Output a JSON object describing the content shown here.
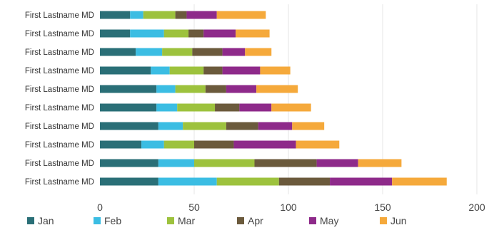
{
  "chart_data": {
    "type": "bar",
    "orientation": "horizontal",
    "stacked": true,
    "categories": [
      "First Lastname MD",
      "First Lastname MD",
      "First Lastname MD",
      "First Lastname MD",
      "First Lastname MD",
      "First Lastname MD",
      "First Lastname MD",
      "First Lastname MD",
      "First Lastname MD",
      "First Lastname MD"
    ],
    "series": [
      {
        "name": "Jan",
        "color": "#2a6f77",
        "values": [
          16,
          16,
          19,
          27,
          30,
          30,
          31,
          22,
          31,
          31
        ]
      },
      {
        "name": "Feb",
        "color": "#3bbde3",
        "values": [
          7,
          18,
          14,
          10,
          10,
          11,
          13,
          12,
          19,
          31
        ]
      },
      {
        "name": "Mar",
        "color": "#9dc23d",
        "values": [
          17,
          13,
          16,
          18,
          16,
          20,
          23,
          16,
          32,
          33
        ]
      },
      {
        "name": "Apr",
        "color": "#6b5a3c",
        "values": [
          6,
          8,
          16,
          10,
          11,
          13,
          17,
          21,
          33,
          27
        ]
      },
      {
        "name": "May",
        "color": "#8e2a8a",
        "values": [
          16,
          17,
          12,
          20,
          16,
          17,
          18,
          33,
          22,
          33
        ]
      },
      {
        "name": "Jun",
        "color": "#f5a93b",
        "values": [
          26,
          18,
          14,
          16,
          22,
          21,
          17,
          23,
          23,
          29
        ]
      }
    ],
    "xlim": [
      0,
      200
    ],
    "xticks": [
      0,
      50,
      100,
      150,
      200
    ],
    "grid": true,
    "legend": "bottom"
  }
}
